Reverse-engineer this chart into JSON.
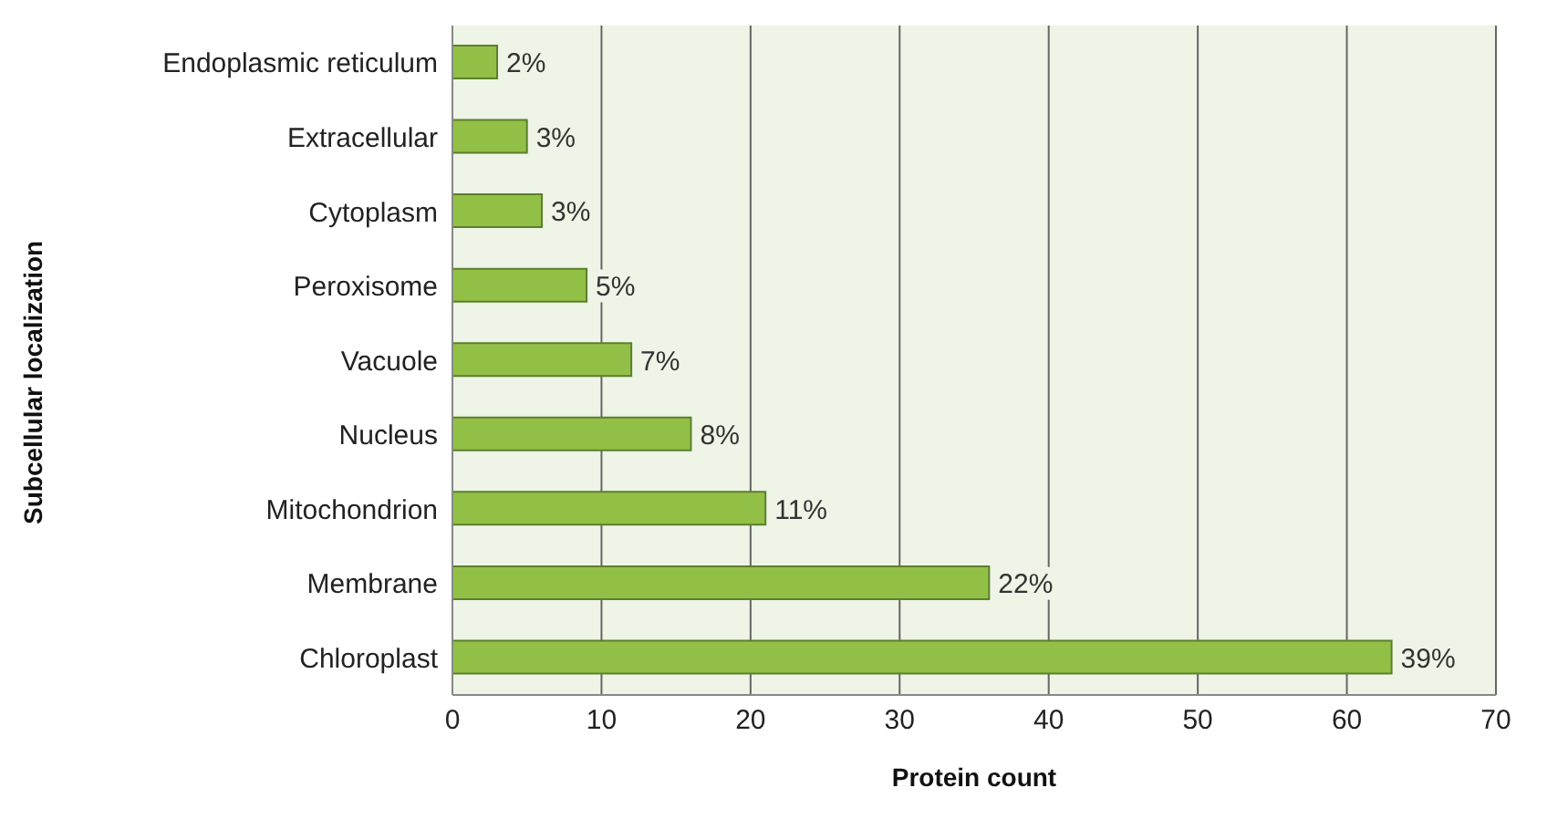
{
  "chart_data": {
    "type": "bar",
    "orientation": "horizontal",
    "xlabel": "Protein count",
    "ylabel": "Subcellular localization",
    "categories": [
      "Endoplasmic reticulum",
      "Extracellular",
      "Cytoplasm",
      "Peroxisome",
      "Vacuole",
      "Nucleus",
      "Mitochondrion",
      "Membrane",
      "Chloroplast"
    ],
    "values": [
      3,
      5,
      6,
      9,
      12,
      16,
      21,
      36,
      63
    ],
    "annotations": [
      {
        "text": "2%",
        "x": 3,
        "y": "Endoplasmic reticulum"
      },
      {
        "text": "3%",
        "x": 5,
        "y": "Extracellular"
      },
      {
        "text": "3%",
        "x": 6,
        "y": "Cytoplasm"
      },
      {
        "text": "5%",
        "x": 9,
        "y": "Peroxisome"
      },
      {
        "text": "7%",
        "x": 12,
        "y": "Vacuole"
      },
      {
        "text": "8%",
        "x": 16,
        "y": "Nucleus"
      },
      {
        "text": "11%",
        "x": 21,
        "y": "Mitochondrion"
      },
      {
        "text": "22%",
        "x": 36,
        "y": "Membrane"
      },
      {
        "text": "39%",
        "x": 63,
        "y": "Chloroplast"
      }
    ],
    "color": "#92c047",
    "xlim": [
      0,
      70
    ],
    "xticks": [
      0,
      10,
      20,
      30,
      40,
      50,
      60,
      70
    ],
    "grid": "x",
    "legend": false
  }
}
